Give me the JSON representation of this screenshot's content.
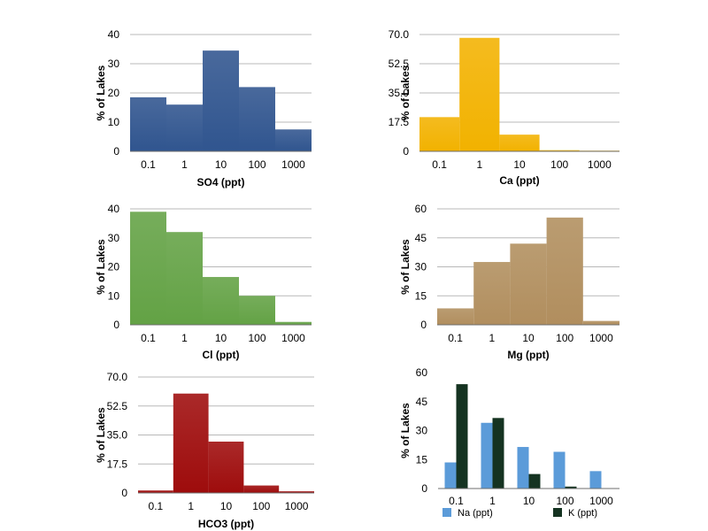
{
  "chart_data": [
    {
      "type": "bar",
      "variant": "histogram",
      "xlabel": "SO4 (ppt)",
      "ylabel": "% of Lakes",
      "x_tick_labels": [
        "0.1",
        "1",
        "10",
        "100",
        "1000"
      ],
      "ylim": [
        0,
        40
      ],
      "y_ticks": [
        "0",
        "10",
        "20",
        "30",
        "40"
      ],
      "values": [
        18.5,
        16.0,
        34.5,
        22.0,
        7.5
      ],
      "color": "#30558f",
      "grid": true
    },
    {
      "type": "bar",
      "variant": "histogram",
      "xlabel": "Ca (ppt)",
      "ylabel": "% of Lakes",
      "x_tick_labels": [
        "0.1",
        "1",
        "10",
        "100",
        "1000"
      ],
      "ylim": [
        0,
        70
      ],
      "y_ticks": [
        "0",
        "17.5",
        "35.0",
        "52.5",
        "70.0"
      ],
      "values": [
        20.5,
        68.0,
        10.0,
        0.7,
        0.4
      ],
      "color": "#f2b200",
      "grid": true
    },
    {
      "type": "bar",
      "variant": "histogram",
      "xlabel": "Cl (ppt)",
      "ylabel": "% of Lakes",
      "x_tick_labels": [
        "0.1",
        "1",
        "10",
        "100",
        "1000"
      ],
      "ylim": [
        0,
        40
      ],
      "y_ticks": [
        "0",
        "10",
        "20",
        "30",
        "40"
      ],
      "values": [
        39.0,
        32.0,
        16.5,
        10.0,
        1.0
      ],
      "color": "#63a245",
      "grid": true
    },
    {
      "type": "bar",
      "variant": "histogram",
      "xlabel": "Mg (ppt)",
      "ylabel": "% of Lakes",
      "x_tick_labels": [
        "0.1",
        "1",
        "10",
        "100",
        "1000"
      ],
      "ylim": [
        0,
        60
      ],
      "y_ticks": [
        "0",
        "15",
        "30",
        "45",
        "60"
      ],
      "values": [
        8.5,
        32.5,
        42.0,
        55.5,
        2.0
      ],
      "color": "#b18e5e",
      "grid": true
    },
    {
      "type": "bar",
      "variant": "histogram",
      "xlabel": "HCO3 (ppt)",
      "ylabel": "% of Lakes",
      "x_tick_labels": [
        "0.1",
        "1",
        "10",
        "100",
        "1000"
      ],
      "ylim": [
        0,
        70
      ],
      "y_ticks": [
        "0",
        "17.5",
        "35.0",
        "52.5",
        "70.0"
      ],
      "values": [
        1.5,
        60.0,
        31.0,
        4.5,
        1.0
      ],
      "color": "#9e0c0c",
      "grid": true
    },
    {
      "type": "bar",
      "variant": "grouped",
      "xlabel": "",
      "ylabel": "% of Lakes",
      "categories": [
        "0.1",
        "1",
        "10",
        "100",
        "1000"
      ],
      "ylim": [
        0,
        60
      ],
      "y_ticks": [
        "0",
        "15",
        "30",
        "45",
        "60"
      ],
      "series": [
        {
          "name": "Na (ppt)",
          "values": [
            13.5,
            34.0,
            21.5,
            19.0,
            9.0
          ],
          "color": "#5b9bd9"
        },
        {
          "name": "K (ppt)",
          "values": [
            54.0,
            36.5,
            7.5,
            1.0,
            0
          ],
          "color": "#153321"
        }
      ],
      "legend": "bottom",
      "grid": false
    }
  ]
}
